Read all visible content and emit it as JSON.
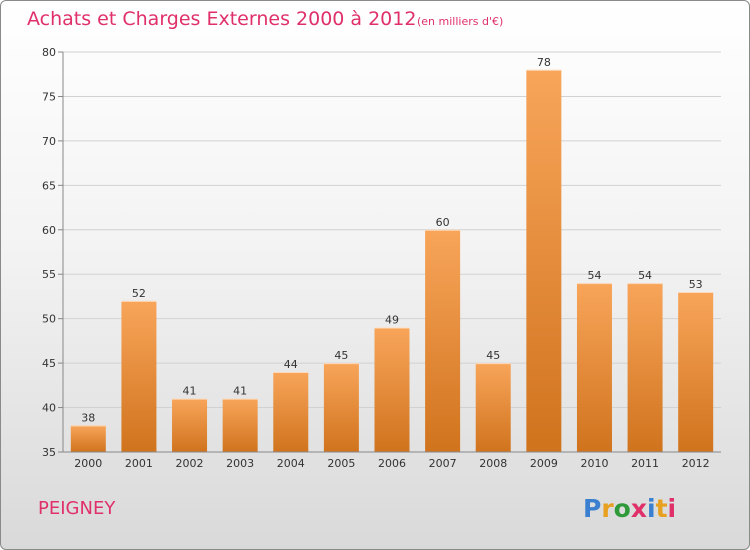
{
  "header": {
    "title": "Achats et Charges Externes 2000 à 2012",
    "unit": "(en milliers d'€)"
  },
  "footer": {
    "commune": "PEIGNEY",
    "logo_text": "Proxiti",
    "logo_colors": [
      "#3a7fd0",
      "#e8a020",
      "#2f9a3a",
      "#e0306a",
      "#3a7fd0",
      "#e8a020",
      "#e0306a"
    ]
  },
  "colors": {
    "bar_top": "#f8a55a",
    "bar_bottom": "#d0731d",
    "accent": "#e0306a"
  },
  "chart_data": {
    "type": "bar",
    "categories": [
      "2000",
      "2001",
      "2002",
      "2003",
      "2004",
      "2005",
      "2006",
      "2007",
      "2008",
      "2009",
      "2010",
      "2011",
      "2012"
    ],
    "values": [
      38,
      52,
      41,
      41,
      44,
      45,
      49,
      60,
      45,
      78,
      54,
      54,
      53
    ],
    "data_labels": [
      "38",
      "52",
      "41",
      "41",
      "44",
      "45",
      "49",
      "60",
      "45",
      "78",
      "54",
      "54",
      "53"
    ],
    "ylim": [
      35,
      80
    ],
    "yticks": [
      "35",
      "40",
      "45",
      "50",
      "55",
      "60",
      "65",
      "70",
      "75",
      "80"
    ],
    "grid": true
  }
}
